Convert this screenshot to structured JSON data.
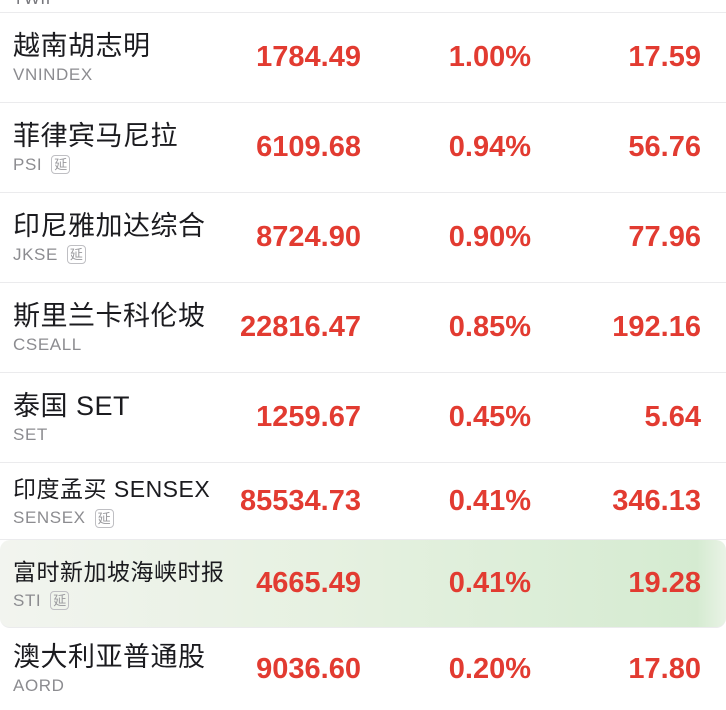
{
  "colors": {
    "up_red": "#e23b31",
    "name_text": "#1b1b1f",
    "ticker_text": "#8c8c90",
    "separator": "#ebebed",
    "highlight_green_start": "#f2f4ef",
    "highlight_green_end": "#d5ebd1"
  },
  "badge": {
    "delayed_label": "延"
  },
  "partial_row": {
    "ticker": "TWII"
  },
  "rows": [
    {
      "name": "越南胡志明",
      "ticker": "VNINDEX",
      "delayed": false,
      "value": "1784.49",
      "pct": "1.00%",
      "change": "17.59",
      "highlighted": false
    },
    {
      "name": "菲律宾马尼拉",
      "ticker": "PSI",
      "delayed": true,
      "value": "6109.68",
      "pct": "0.94%",
      "change": "56.76",
      "highlighted": false
    },
    {
      "name": "印尼雅加达综合",
      "ticker": "JKSE",
      "delayed": true,
      "value": "8724.90",
      "pct": "0.90%",
      "change": "77.96",
      "highlighted": false
    },
    {
      "name": "斯里兰卡科伦坡",
      "ticker": "CSEALL",
      "delayed": false,
      "value": "22816.47",
      "pct": "0.85%",
      "change": "192.16",
      "highlighted": false
    },
    {
      "name": "泰国 SET",
      "ticker": "SET",
      "delayed": false,
      "value": "1259.67",
      "pct": "0.45%",
      "change": "5.64",
      "highlighted": false
    },
    {
      "name": "印度孟买 SENSEX",
      "ticker": "SENSEX",
      "delayed": true,
      "value": "85534.73",
      "pct": "0.41%",
      "change": "346.13",
      "highlighted": false
    },
    {
      "name": "富时新加坡海峡时报",
      "ticker": "STI",
      "delayed": true,
      "value": "4665.49",
      "pct": "0.41%",
      "change": "19.28",
      "highlighted": true
    },
    {
      "name": "澳大利亚普通股",
      "ticker": "AORD",
      "delayed": false,
      "value": "9036.60",
      "pct": "0.20%",
      "change": "17.80",
      "highlighted": false
    }
  ]
}
